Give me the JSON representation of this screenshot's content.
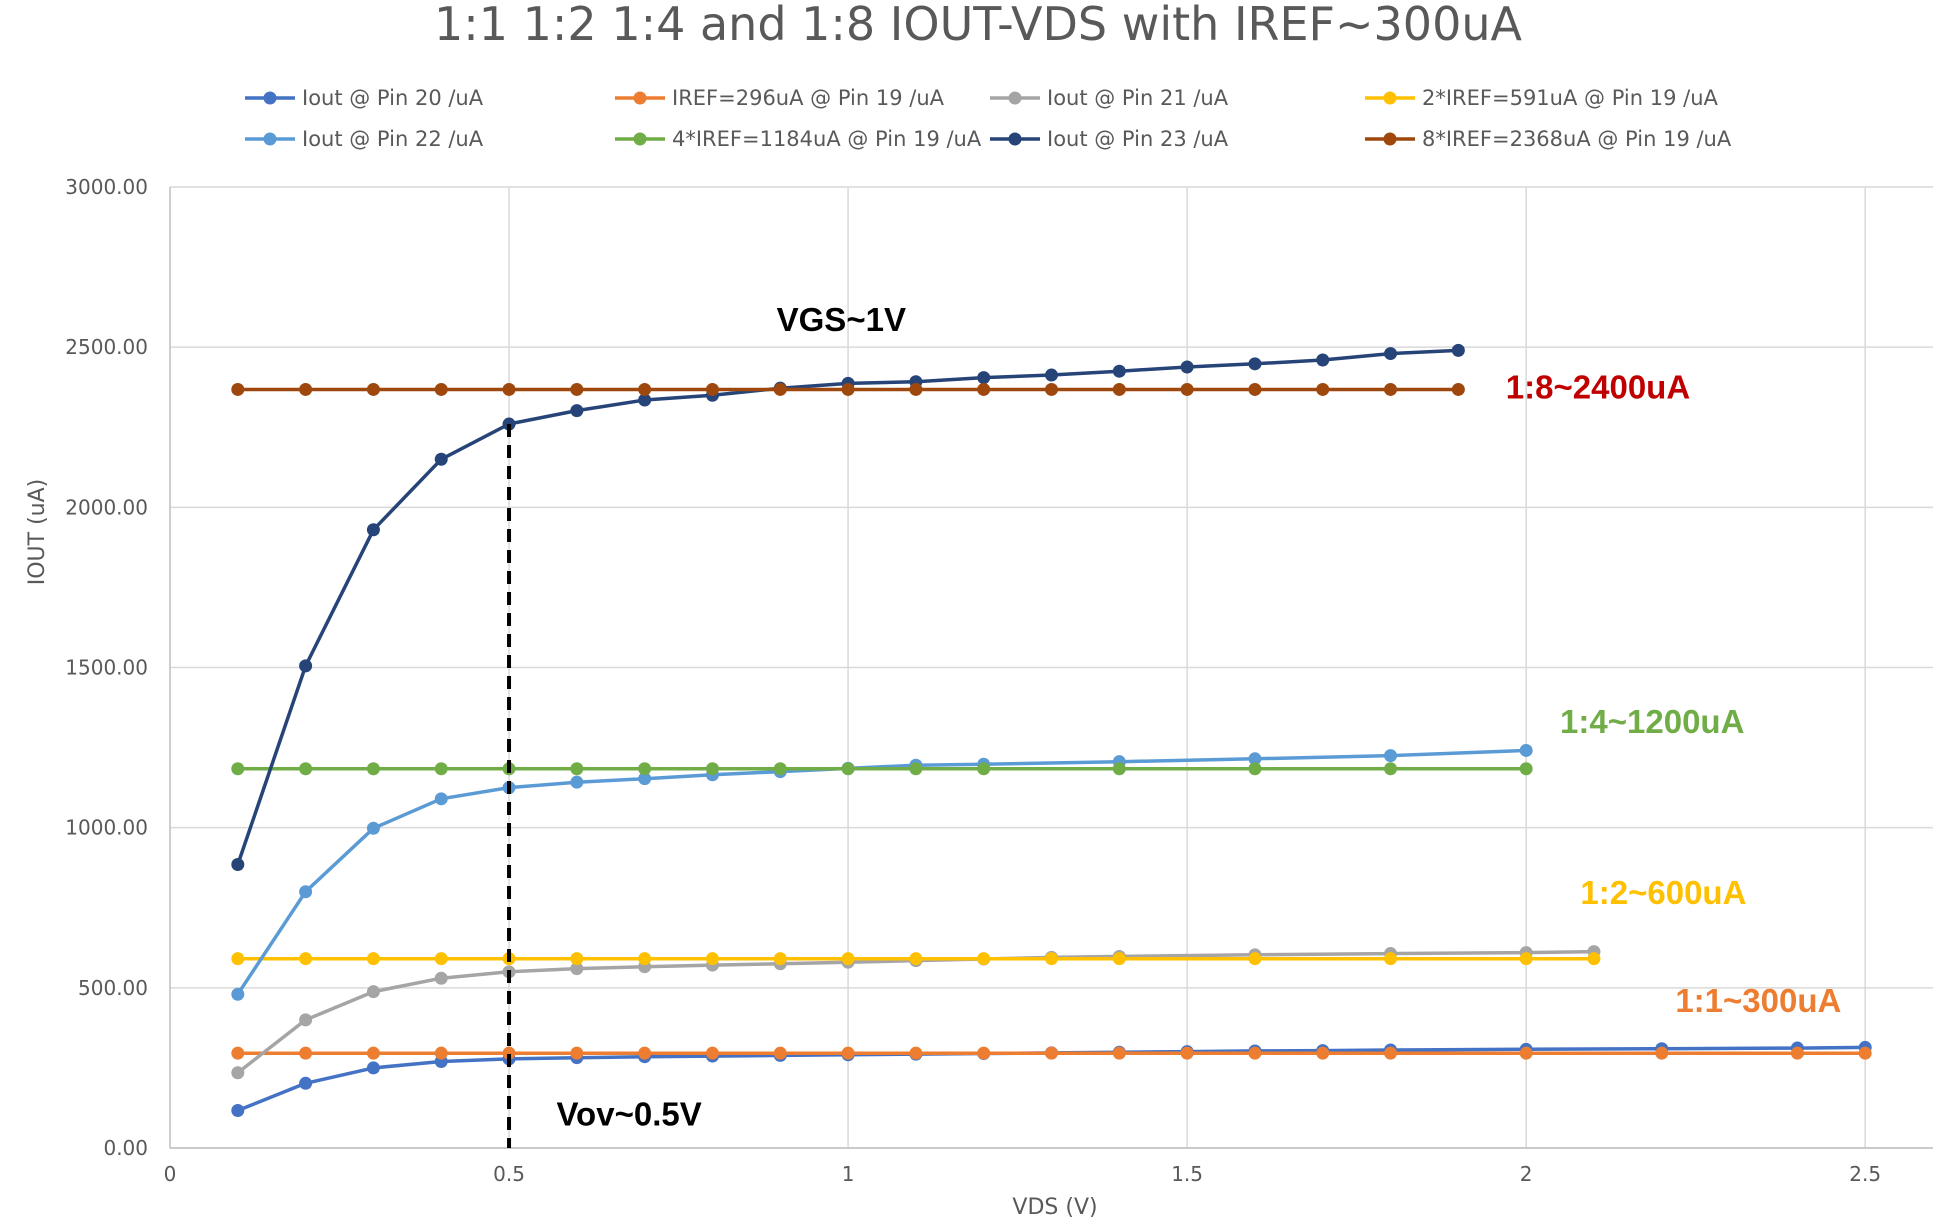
{
  "chart_data": {
    "type": "line",
    "title": "1:1 1:2 1:4 and 1:8 IOUT-VDS with IREF~300uA",
    "xlabel": "VDS (V)",
    "ylabel": "IOUT (uA)",
    "xlim": [
      0,
      2.6
    ],
    "ylim": [
      0,
      3000
    ],
    "x_ticks": [
      0,
      0.5,
      1,
      1.5,
      2,
      2.5
    ],
    "x_tick_labels": [
      "0",
      "0.5",
      "1",
      "1.5",
      "2",
      "2.5"
    ],
    "y_ticks": [
      0,
      500,
      1000,
      1500,
      2000,
      2500,
      3000
    ],
    "y_tick_labels": [
      "0.00",
      "500.00",
      "1000.00",
      "1500.00",
      "2000.00",
      "2500.00",
      "3000.00"
    ],
    "grid": true,
    "legend_position": "top",
    "series": [
      {
        "name": "Iout @ Pin 20 /uA",
        "color": "#4472C4",
        "x": [
          0.1,
          0.2,
          0.3,
          0.4,
          0.5,
          0.6,
          0.7,
          0.8,
          0.9,
          1.0,
          1.1,
          1.2,
          1.3,
          1.4,
          1.5,
          1.6,
          1.7,
          1.8,
          2.0,
          2.2,
          2.4,
          2.5
        ],
        "y": [
          117,
          202,
          250,
          270,
          278,
          282,
          285,
          287,
          289,
          291,
          293,
          295,
          297,
          299,
          301,
          303,
          304,
          306,
          308,
          310,
          312,
          314
        ]
      },
      {
        "name": "IREF=296uA @ Pin 19 /uA",
        "color": "#ED7D31",
        "x": [
          0.1,
          0.2,
          0.3,
          0.4,
          0.5,
          0.6,
          0.7,
          0.8,
          0.9,
          1.0,
          1.1,
          1.2,
          1.3,
          1.4,
          1.5,
          1.6,
          1.7,
          1.8,
          2.0,
          2.2,
          2.4,
          2.5
        ],
        "y": [
          296,
          296,
          296,
          296,
          296,
          296,
          296,
          296,
          296,
          296,
          296,
          296,
          296,
          296,
          296,
          296,
          296,
          296,
          296,
          296,
          296,
          296
        ]
      },
      {
        "name": "Iout @ Pin 21 /uA",
        "color": "#A5A5A5",
        "x": [
          0.1,
          0.2,
          0.3,
          0.4,
          0.5,
          0.6,
          0.7,
          0.8,
          0.9,
          1.0,
          1.1,
          1.2,
          1.3,
          1.4,
          1.6,
          1.8,
          2.0,
          2.1
        ],
        "y": [
          235,
          400,
          488,
          530,
          550,
          560,
          566,
          571,
          575,
          580,
          585,
          590,
          595,
          598,
          603,
          607,
          610,
          613
        ]
      },
      {
        "name": "2*IREF=591uA @ Pin 19 /uA",
        "color": "#FFC000",
        "x": [
          0.1,
          0.2,
          0.3,
          0.4,
          0.5,
          0.6,
          0.7,
          0.8,
          0.9,
          1.0,
          1.1,
          1.2,
          1.3,
          1.4,
          1.6,
          1.8,
          2.0,
          2.1
        ],
        "y": [
          591,
          591,
          591,
          591,
          591,
          591,
          591,
          591,
          591,
          591,
          591,
          591,
          591,
          591,
          591,
          591,
          591,
          591
        ]
      },
      {
        "name": "Iout @ Pin 22 /uA",
        "color": "#5B9BD5",
        "x": [
          0.1,
          0.2,
          0.3,
          0.4,
          0.5,
          0.6,
          0.7,
          0.8,
          0.9,
          1.0,
          1.1,
          1.2,
          1.4,
          1.6,
          1.8,
          2.0
        ],
        "y": [
          480,
          800,
          998,
          1090,
          1125,
          1142,
          1153,
          1165,
          1175,
          1185,
          1195,
          1198,
          1206,
          1215,
          1225,
          1241
        ]
      },
      {
        "name": "4*IREF=1184uA @ Pin 19 /uA",
        "color": "#70AD47",
        "x": [
          0.1,
          0.2,
          0.3,
          0.4,
          0.5,
          0.6,
          0.7,
          0.8,
          0.9,
          1.0,
          1.1,
          1.2,
          1.4,
          1.6,
          1.8,
          2.0
        ],
        "y": [
          1184,
          1184,
          1184,
          1184,
          1184,
          1184,
          1184,
          1184,
          1184,
          1184,
          1184,
          1184,
          1184,
          1184,
          1184,
          1184
        ]
      },
      {
        "name": "Iout @ Pin 23 /uA",
        "color": "#264478",
        "x": [
          0.1,
          0.2,
          0.3,
          0.4,
          0.5,
          0.6,
          0.7,
          0.8,
          0.9,
          1.0,
          1.1,
          1.2,
          1.3,
          1.4,
          1.5,
          1.6,
          1.7,
          1.8,
          1.9
        ],
        "y": [
          885,
          1505,
          1930,
          2150,
          2260,
          2302,
          2335,
          2350,
          2372,
          2387,
          2392,
          2405,
          2413,
          2425,
          2438,
          2448,
          2460,
          2480,
          2490
        ]
      },
      {
        "name": "8*IREF=2368uA @ Pin 19 /uA",
        "color": "#9E480E",
        "x": [
          0.1,
          0.2,
          0.3,
          0.4,
          0.5,
          0.6,
          0.7,
          0.8,
          0.9,
          1.0,
          1.1,
          1.2,
          1.3,
          1.4,
          1.5,
          1.6,
          1.7,
          1.8,
          1.9
        ],
        "y": [
          2368,
          2368,
          2368,
          2368,
          2368,
          2368,
          2368,
          2368,
          2368,
          2368,
          2368,
          2368,
          2368,
          2368,
          2368,
          2368,
          2368,
          2368,
          2368
        ]
      }
    ],
    "reference_lines": [
      {
        "axis": "x",
        "value": 0.5,
        "style": "dashed",
        "color": "#000000"
      }
    ],
    "annotations": [
      {
        "text": "VGS~1V",
        "x": 0.99,
        "y": 2550,
        "color": "#000000",
        "anchor": "middle"
      },
      {
        "text": "1:8~2400uA",
        "x": 1.97,
        "y": 2340,
        "color": "#C00000",
        "anchor": "start"
      },
      {
        "text": "1:4~1200uA",
        "x": 2.05,
        "y": 1295,
        "color": "#70AD47",
        "anchor": "start"
      },
      {
        "text": "1:2~600uA",
        "x": 2.08,
        "y": 762,
        "color": "#FFC000",
        "anchor": "start"
      },
      {
        "text": "1:1~300uA",
        "x": 2.22,
        "y": 425,
        "color": "#ED7D31",
        "anchor": "start"
      },
      {
        "text": "Vov~0.5V",
        "x": 0.57,
        "y": 70,
        "color": "#000000",
        "anchor": "start"
      }
    ]
  }
}
